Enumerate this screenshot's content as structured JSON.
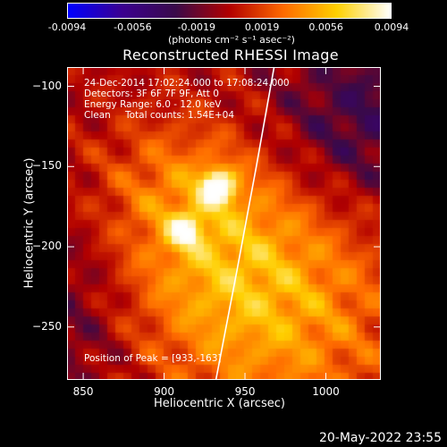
{
  "colorbar": {
    "ticks": [
      "-0.0094",
      "-0.0056",
      "-0.0019",
      "0.0019",
      "0.0056",
      "0.0094"
    ],
    "tick_values": [
      -0.0094,
      -0.0056,
      -0.0019,
      0.0019,
      0.0056,
      0.0094
    ],
    "unit_label": "(photons cm⁻² s⁻¹ asec⁻²)",
    "range": [
      -0.0094,
      0.0094
    ],
    "colors": [
      "#0000ff",
      "#3b0090",
      "#3a0a4a",
      "#b20000",
      "#ff6a00",
      "#ffd000",
      "#ffffff"
    ]
  },
  "chart_data": {
    "type": "heatmap",
    "title": "Reconstructed RHESSI Image",
    "xlabel": "Heliocentric X (arcsec)",
    "ylabel": "Heliocentric Y (arcsec)",
    "xlim": [
      840,
      1034
    ],
    "ylim": [
      -283,
      -88
    ],
    "x_ticks": [
      "850",
      "900",
      "950",
      "1000"
    ],
    "x_tick_values": [
      850,
      900,
      950,
      1000
    ],
    "y_ticks": [
      "-100",
      "-150",
      "-200",
      "-250"
    ],
    "y_tick_values": [
      -100,
      -150,
      -200,
      -250
    ],
    "sources": [
      {
        "x": 933,
        "y": -163,
        "peak": 0.0094
      },
      {
        "x": 913,
        "y": -190,
        "peak": 0.006
      }
    ],
    "limb": [
      [
        968,
        -88
      ],
      [
        957,
        -150
      ],
      [
        945,
        -215
      ],
      [
        932,
        -283
      ]
    ],
    "annotations": {
      "time": "24-Dec-2014 17:02:24.000 to 17:08:24.000",
      "detectors": "Detectors: 3F 6F 7F 9F, Att 0",
      "energy": "Energy Range: 6.0 - 12.0 keV",
      "clean_label": "Clean",
      "counts": "Total counts: 1.54E+04",
      "peak": "Position of Peak = [933,-163]"
    }
  },
  "footer": {
    "date": "20-May-2022 23:55"
  }
}
